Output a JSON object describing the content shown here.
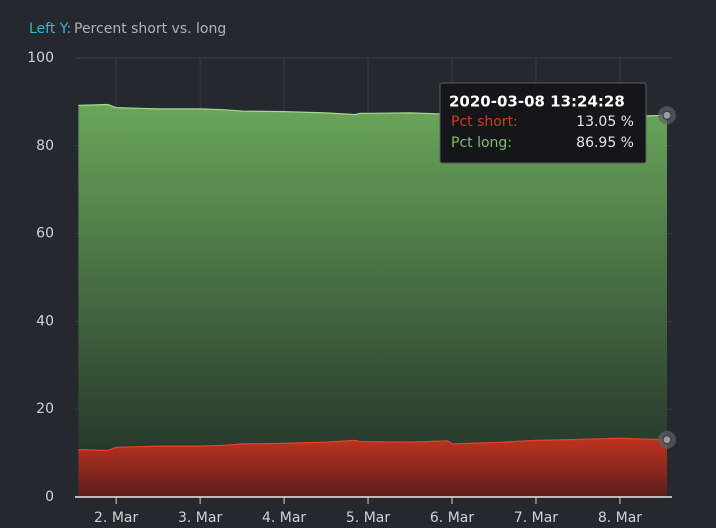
{
  "chart_data": {
    "type": "area",
    "axis_prefix": "Left Y:",
    "ylabel": "Percent short vs. long",
    "x": [
      1.55,
      1.9,
      2.0,
      2.5,
      3.0,
      3.3,
      3.5,
      4.0,
      4.5,
      4.85,
      4.9,
      5.0,
      5.5,
      5.95,
      6.0,
      6.5,
      7.0,
      7.5,
      8.0,
      8.3,
      8.56
    ],
    "series": [
      {
        "name": "Pct short:",
        "color": "#c0321f",
        "values": [
          10.8,
          10.6,
          11.3,
          11.6,
          11.6,
          11.8,
          12.1,
          12.2,
          12.5,
          12.9,
          12.6,
          12.6,
          12.5,
          12.8,
          12.1,
          12.4,
          12.9,
          13.1,
          13.4,
          13.2,
          13.05
        ]
      },
      {
        "name": "Pct long:",
        "color": "#6aa65a",
        "values": [
          89.2,
          89.4,
          88.7,
          88.4,
          88.4,
          88.2,
          87.9,
          87.8,
          87.5,
          87.1,
          87.4,
          87.4,
          87.5,
          87.2,
          87.9,
          87.6,
          87.1,
          86.9,
          86.6,
          86.8,
          86.95
        ]
      }
    ],
    "xlim": [
      1.51,
      8.62
    ],
    "xticks": [
      {
        "value": 2,
        "label": "2. Mar"
      },
      {
        "value": 3,
        "label": "3. Mar"
      },
      {
        "value": 4,
        "label": "4. Mar"
      },
      {
        "value": 5,
        "label": "5. Mar"
      },
      {
        "value": 6,
        "label": "6. Mar"
      },
      {
        "value": 7,
        "label": "7. Mar"
      },
      {
        "value": 8,
        "label": "8. Mar"
      }
    ],
    "ylim": [
      0,
      100
    ],
    "yticks": [
      0,
      20,
      40,
      60,
      80,
      100
    ],
    "grid": true,
    "tooltip": {
      "title": "2020-03-08 13:24:28",
      "value_labels": [
        "13.05 %",
        "86.95 %"
      ]
    }
  }
}
